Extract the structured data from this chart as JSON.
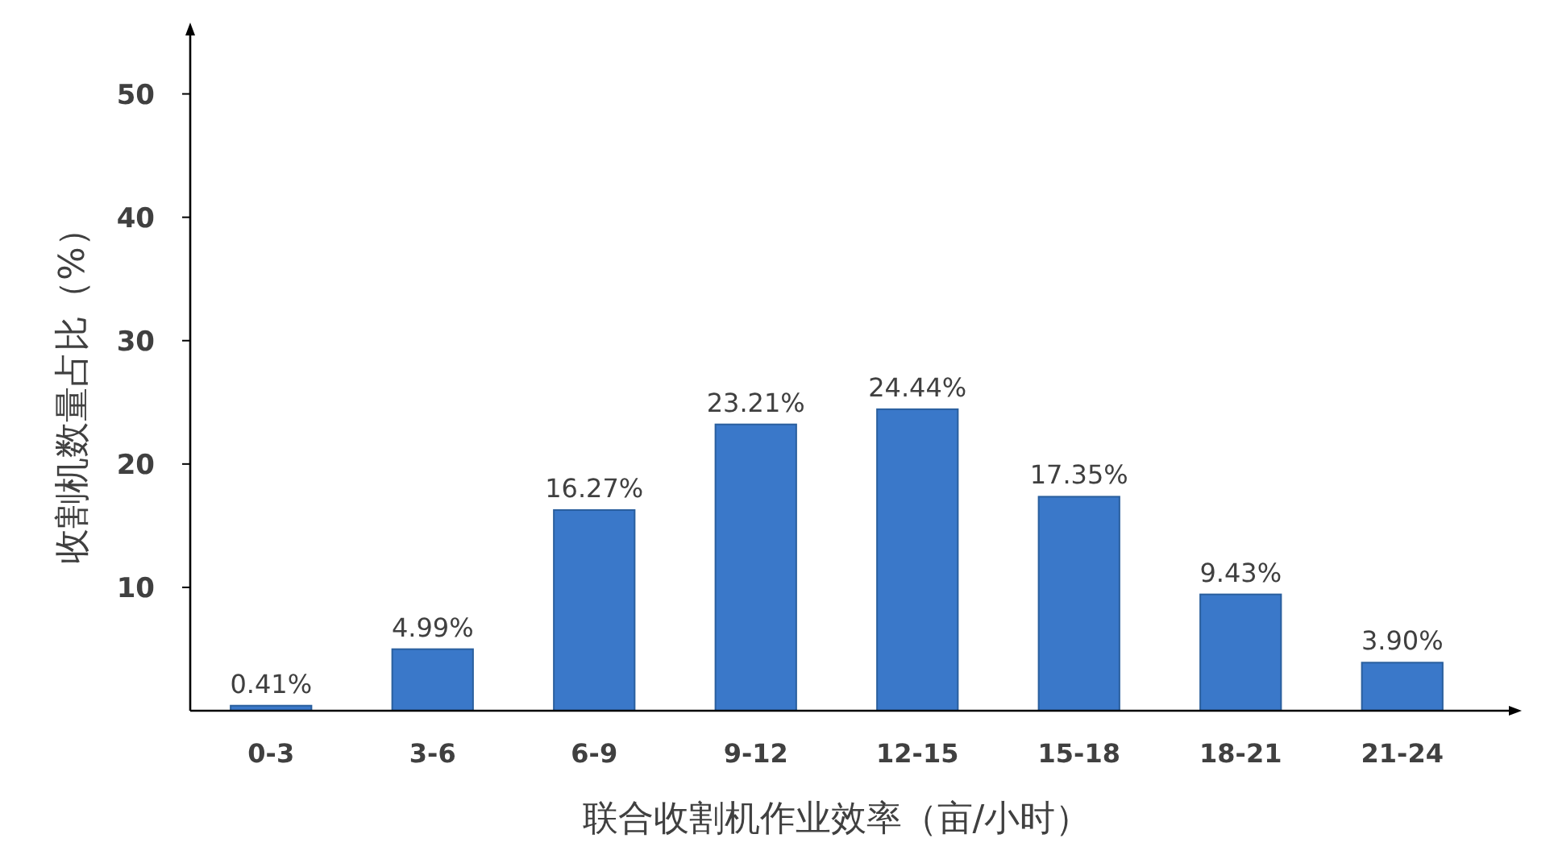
{
  "chart_data": {
    "type": "bar",
    "xlabel": "联合收割机作业效率（亩/小时）",
    "ylabel": "收割机数量占比（%）",
    "categories": [
      "0-3",
      "3-6",
      "6-9",
      "9-12",
      "12-15",
      "15-18",
      "18-21",
      "21-24"
    ],
    "values": [
      0.41,
      4.99,
      16.27,
      23.21,
      24.44,
      17.35,
      9.43,
      3.9
    ],
    "value_labels": [
      "0.41%",
      "4.99%",
      "16.27%",
      "23.21%",
      "24.44%",
      "17.35%",
      "9.43%",
      "3.90%"
    ],
    "color": "#3a78c9",
    "ylim": [
      0,
      55
    ],
    "yticks": [
      10,
      20,
      30,
      40,
      50
    ]
  }
}
